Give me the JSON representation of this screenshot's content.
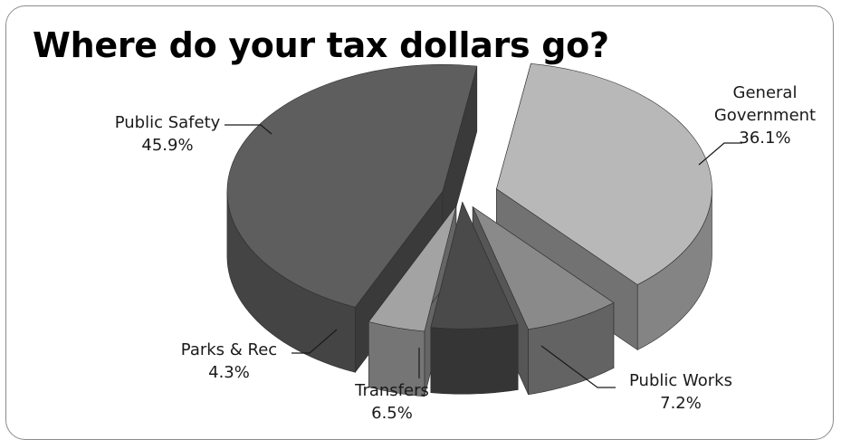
{
  "chart_data": {
    "type": "pie",
    "style": "3d-exploded",
    "title": "Where do your tax dollars go?",
    "slices": [
      {
        "name": "General Government",
        "label_lines": [
          "General",
          "Government"
        ],
        "value": 36.1,
        "value_label": "36.1%",
        "color": "#b8b8b8"
      },
      {
        "name": "Public Works",
        "label_lines": [
          "Public Works"
        ],
        "value": 7.2,
        "value_label": "7.2%",
        "color": "#8a8a8a"
      },
      {
        "name": "Transfers",
        "label_lines": [
          "Transfers"
        ],
        "value": 6.5,
        "value_label": "6.5%",
        "color": "#4a4a4a"
      },
      {
        "name": "Parks & Rec",
        "label_lines": [
          "Parks & Rec"
        ],
        "value": 4.3,
        "value_label": "4.3%",
        "color": "#a3a3a3"
      },
      {
        "name": "Public Safety",
        "label_lines": [
          "Public Safety"
        ],
        "value": 45.9,
        "value_label": "45.9%",
        "color": "#5e5e5e"
      }
    ]
  }
}
